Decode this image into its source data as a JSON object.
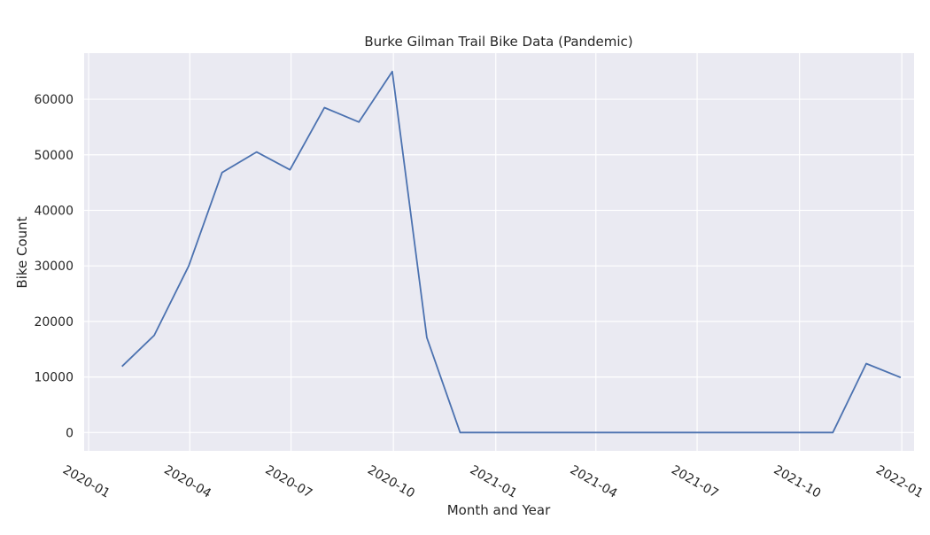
{
  "chart_data": {
    "type": "line",
    "title": "Burke Gilman Trail Bike Data (Pandemic)",
    "xlabel": "Month and Year",
    "ylabel": "Bike Count",
    "x_type": "date",
    "xlim": [
      "2019-12-28",
      "2022-01-12"
    ],
    "ylim": [
      -3300,
      68300
    ],
    "x_ticks": [
      "2020-01",
      "2020-04",
      "2020-07",
      "2020-10",
      "2021-01",
      "2021-04",
      "2021-07",
      "2021-10",
      "2022-01"
    ],
    "y_ticks": [
      0,
      10000,
      20000,
      30000,
      40000,
      50000,
      60000
    ],
    "grid": true,
    "color": "#4c72b0",
    "series": [
      {
        "x": [
          "2020-01-31",
          "2020-02-29",
          "2020-03-31",
          "2020-04-30",
          "2020-05-31",
          "2020-06-30",
          "2020-07-31",
          "2020-08-31",
          "2020-09-30",
          "2020-10-31",
          "2020-11-30",
          "2020-12-31",
          "2021-01-31",
          "2021-02-28",
          "2021-03-31",
          "2021-04-30",
          "2021-05-31",
          "2021-06-30",
          "2021-07-31",
          "2021-08-31",
          "2021-09-30",
          "2021-10-31",
          "2021-11-30",
          "2021-12-31"
        ],
        "values": [
          11900,
          17500,
          30000,
          46800,
          50500,
          47300,
          58500,
          55900,
          65000,
          17100,
          0,
          0,
          0,
          0,
          0,
          0,
          0,
          0,
          0,
          0,
          0,
          0,
          12400,
          9900
        ]
      }
    ]
  }
}
